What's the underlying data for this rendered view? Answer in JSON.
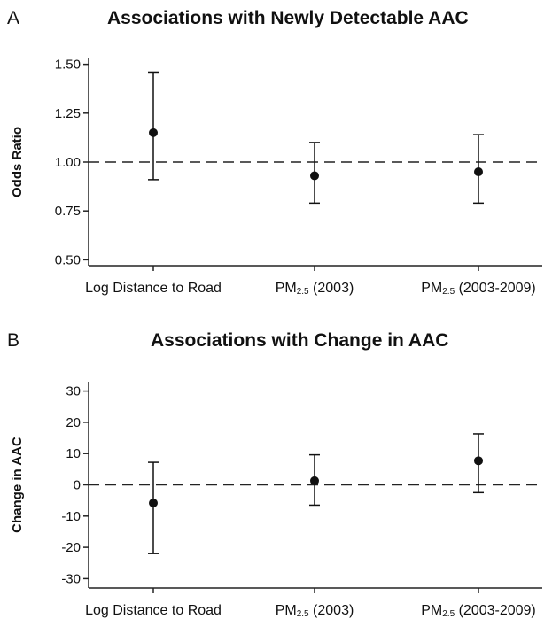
{
  "chart_data": [
    {
      "panel_letter": "A",
      "type": "scatter",
      "title": "Associations with Newly Detectable AAC",
      "ylabel": "Odds Ratio",
      "xlabel": "",
      "ylim": [
        0.47,
        1.53
      ],
      "yticks": [
        1.5,
        1.25,
        1.0,
        0.75,
        0.5
      ],
      "ytick_labels": [
        "1.50",
        "1.25",
        "1.00",
        "0.75",
        "0.50"
      ],
      "reference_line": 1.0,
      "categories": [
        {
          "main": "Log Distance to Road",
          "sub": "",
          "suffix": ""
        },
        {
          "main": "PM",
          "sub": "2.5",
          "suffix": " (2003)"
        },
        {
          "main": "PM",
          "sub": "2.5",
          "suffix": " (2003-2009)"
        }
      ],
      "estimates": [
        1.15,
        0.93,
        0.95
      ],
      "lower": [
        0.91,
        0.79,
        0.79
      ],
      "upper": [
        1.46,
        1.1,
        1.14
      ],
      "grid": false
    },
    {
      "panel_letter": "B",
      "type": "scatter",
      "title": "Associations with Change in AAC",
      "ylabel": "Change in AAC",
      "xlabel": "",
      "ylim": [
        -33,
        33
      ],
      "yticks": [
        30,
        20,
        10,
        0,
        -10,
        -20,
        -30
      ],
      "ytick_labels": [
        "30",
        "20",
        "10",
        "0",
        "-10",
        "-20",
        "-30"
      ],
      "reference_line": 0,
      "categories": [
        {
          "main": "Log Distance to Road",
          "sub": "",
          "suffix": ""
        },
        {
          "main": "PM",
          "sub": "2.5",
          "suffix": " (2003)"
        },
        {
          "main": "PM",
          "sub": "2.5",
          "suffix": " (2003-2009)"
        }
      ],
      "estimates": [
        -5.8,
        1.3,
        7.7
      ],
      "lower": [
        -22.0,
        -6.5,
        -2.5
      ],
      "upper": [
        7.2,
        9.6,
        16.3
      ],
      "grid": false
    }
  ]
}
